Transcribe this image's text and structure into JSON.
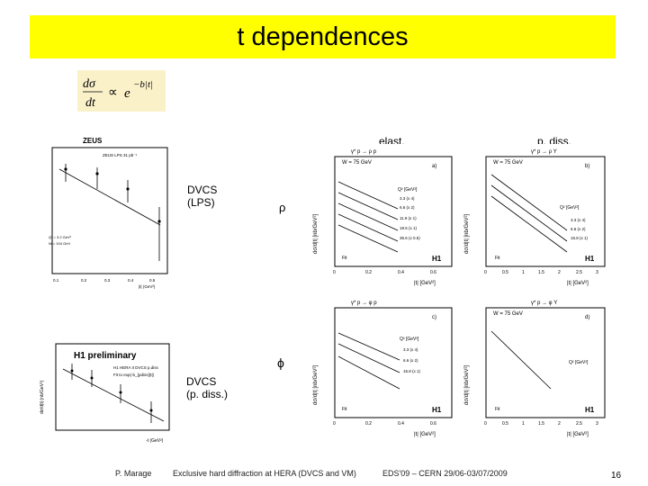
{
  "slide": {
    "title": "t dependences",
    "page_number": "16"
  },
  "formula": {
    "lhs_num": "dσ",
    "lhs_den": "dt",
    "prop": "∝",
    "rhs_base": "e",
    "rhs_exp": "−b|t|"
  },
  "labels": {
    "elast": "elast.",
    "pdiss": "p. diss.",
    "dvcs_lps": "DVCS\n(LPS)",
    "rho": "ρ",
    "phi": "ϕ",
    "dvcs_pdiss": "DVCS\n(p. diss.)"
  },
  "footer": {
    "author": "P. Marage",
    "talk": "Exclusive hard diffraction at HERA (DVCS and VM)",
    "conference": "EDS'09 – CERN 29/06-03/07/2009"
  },
  "plots": {
    "zeus": {
      "title": "ZEUS",
      "legend": "ZEUS LPS 31 pb⁻¹",
      "xlabel": "|t| (GeV²)",
      "xticks": [
        "0.1",
        "0.2",
        "0.3",
        "0.4",
        "0.5"
      ]
    },
    "h1prelim": {
      "title": "H1 preliminary",
      "legend1": "H1 HERA II DVCS p.diss",
      "legend2": "Fit to exp(-b_{pdiss}|t|)",
      "ylabel": "dσ/d|t| (nb/GeV²)",
      "xlabel": "-t (GeV²)"
    },
    "rho_elastic": {
      "process": "γ* p → ρ p",
      "w": "W = 75 GeV",
      "panel": "a)",
      "q2_label": "Q² [GeV²]",
      "q2_values": [
        "3.3 (x 4)",
        "6.6 (x 2)",
        "11.9 (x 1)",
        "19.5 (x 1)",
        "35.6 (x 0.5)"
      ],
      "ylabel": "dσ/d|t| [nb/GeV²]",
      "xlabel": "|t| [GeV²]",
      "xticks": [
        "0",
        "0.2",
        "0.4",
        "0.6"
      ],
      "fit": "Fit",
      "h1": "H1"
    },
    "rho_pdiss": {
      "process": "γ* p → ρ Y",
      "w": "W = 75 GeV",
      "panel": "b)",
      "q2_label": "Q² [GeV²]",
      "q2_values": [
        "3.3 (x 4)",
        "6.6 (x 2)",
        "15.8 (x 1)"
      ],
      "ylabel": "dσ/d|t| [nb/GeV²]",
      "xlabel": "|t| [GeV²]",
      "xticks": [
        "0",
        "0.5",
        "1",
        "1.5",
        "2",
        "2.5",
        "3"
      ],
      "fit": "Fit",
      "h1": "H1"
    },
    "phi_elastic": {
      "process": "γ* p → φ p",
      "panel": "c)",
      "q2_label": "Q² [GeV²]",
      "q2_values": [
        "3.3 (x 4)",
        "6.6 (x 2)",
        "15.8 (x 1)"
      ],
      "ylabel": "dσ/d|t| [nb/GeV²]",
      "xlabel": "|t| [GeV²]",
      "xticks": [
        "0",
        "0.2",
        "0.4",
        "0.6"
      ],
      "fit": "Fit",
      "h1": "H1"
    },
    "phi_pdiss": {
      "process": "γ* p → φ Y",
      "w": "W = 75 GeV",
      "panel": "d)",
      "q2_label": "Q² [GeV²]",
      "ylabel": "dσ/d|t| [nb/GeV²]",
      "xlabel": "|t| [GeV²]",
      "xticks": [
        "0",
        "0.5",
        "1",
        "1.5",
        "2",
        "2.5",
        "3"
      ],
      "fit": "Fit",
      "h1": "H1"
    }
  }
}
